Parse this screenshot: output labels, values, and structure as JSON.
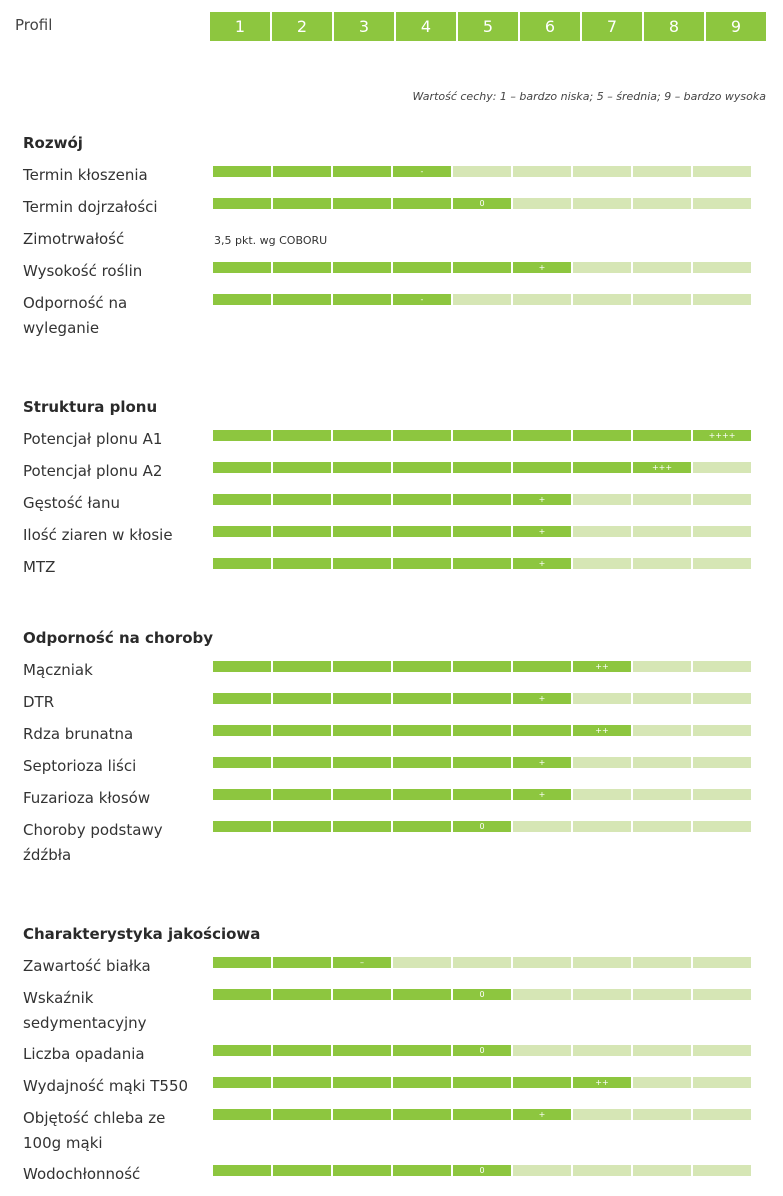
{
  "header": {
    "profil_label": "Profil",
    "scale": [
      "1",
      "2",
      "3",
      "4",
      "5",
      "6",
      "7",
      "8",
      "9"
    ],
    "legend": "Wartość cechy: 1 – bardzo niska; 5 – średnia; 9 – bardzo wysoka"
  },
  "colors": {
    "filled": "#8dc63f",
    "empty": "#d6e6b5"
  },
  "sections": [
    {
      "title": "Rozwój",
      "rows": [
        {
          "label": "Termin kłoszenia",
          "value": 4,
          "mark": "-"
        },
        {
          "label": "Termin dojrzałości",
          "value": 5,
          "mark": "0"
        },
        {
          "label": "Zimotrwałość",
          "note": "3,5 pkt. wg COBORU"
        },
        {
          "label": "Wysokość roślin",
          "value": 6,
          "mark": "+"
        },
        {
          "label": "Odporność na wyleganie",
          "value": 4,
          "mark": "-"
        }
      ]
    },
    {
      "title": "Struktura plonu",
      "rows": [
        {
          "label": "Potencjał plonu A1",
          "value": 9,
          "mark": "++++"
        },
        {
          "label": "Potencjał plonu A2",
          "value": 8,
          "mark": "+++"
        },
        {
          "label": "Gęstość łanu",
          "value": 6,
          "mark": "+"
        },
        {
          "label": "Ilość ziaren w kłosie",
          "value": 6,
          "mark": "+"
        },
        {
          "label": "MTZ",
          "value": 6,
          "mark": "+"
        }
      ]
    },
    {
      "title": "Odporność na choroby",
      "rows": [
        {
          "label": "Mączniak",
          "value": 7,
          "mark": "++"
        },
        {
          "label": "DTR",
          "value": 6,
          "mark": "+"
        },
        {
          "label": "Rdza brunatna",
          "value": 7,
          "mark": "++"
        },
        {
          "label": "Septorioza liści",
          "value": 6,
          "mark": "+"
        },
        {
          "label": "Fuzarioza kłosów",
          "value": 6,
          "mark": "+"
        },
        {
          "label": "Choroby podstawy źdźbła",
          "value": 5,
          "mark": "0"
        }
      ]
    },
    {
      "title": "Charakterystyka jakościowa",
      "rows": [
        {
          "label": "Zawartość białka",
          "value": 3,
          "mark": "–"
        },
        {
          "label": "Wskaźnik sedymentacyjny",
          "value": 5,
          "mark": "0"
        },
        {
          "label": "Liczba opadania",
          "value": 5,
          "mark": "0"
        },
        {
          "label": "Wydajność mąki T550",
          "value": 7,
          "mark": "++"
        },
        {
          "label": "Objętość chleba ze 100g mąki",
          "value": 6,
          "mark": "+"
        },
        {
          "label": "Wodochłonność",
          "value": 5,
          "mark": "0"
        }
      ]
    }
  ]
}
